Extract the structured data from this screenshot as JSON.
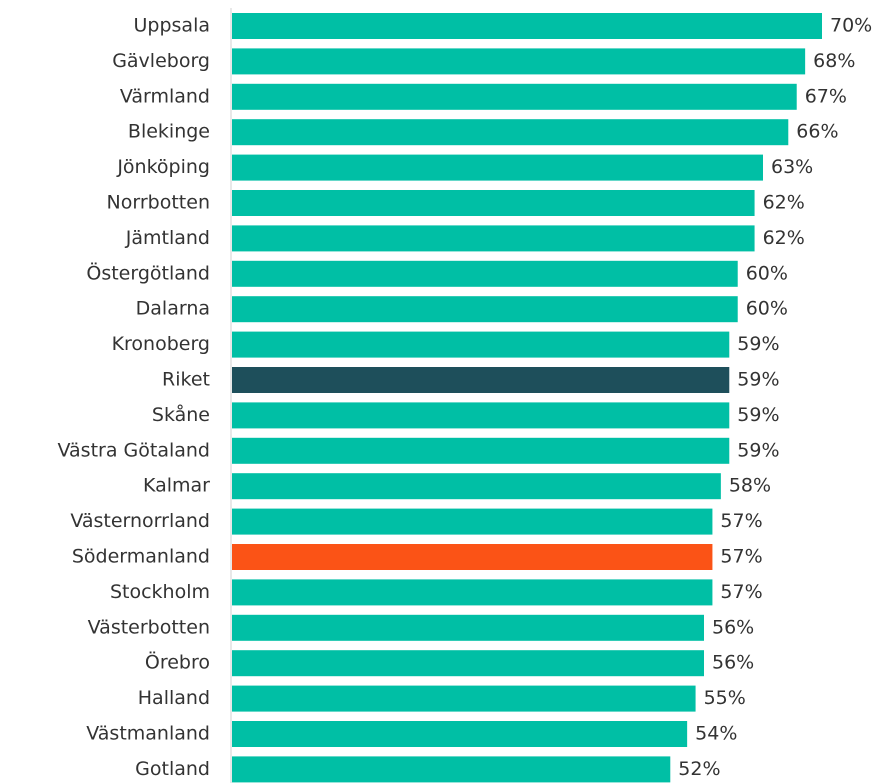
{
  "chart_data": {
    "type": "barh",
    "categories": [
      "Uppsala",
      "Gävleborg",
      "Värmland",
      "Blekinge",
      "Jönköping",
      "Norrbotten",
      "Jämtland",
      "Östergötland",
      "Dalarna",
      "Kronoberg",
      "Riket",
      "Skåne",
      "Västra Götaland",
      "Kalmar",
      "Västernorrland",
      "Södermanland",
      "Stockholm",
      "Västerbotten",
      "Örebro",
      "Halland",
      "Västmanland",
      "Gotland"
    ],
    "values": [
      70,
      68,
      67,
      66,
      63,
      62,
      62,
      60,
      60,
      59,
      59,
      59,
      59,
      58,
      57,
      57,
      57,
      56,
      56,
      55,
      54,
      52
    ],
    "value_labels": [
      "70%",
      "68%",
      "67%",
      "66%",
      "63%",
      "62%",
      "62%",
      "60%",
      "60%",
      "59%",
      "59%",
      "59%",
      "59%",
      "58%",
      "57%",
      "57%",
      "57%",
      "56%",
      "56%",
      "55%",
      "54%",
      "52%"
    ],
    "colors": [
      "#00bfa5",
      "#00bfa5",
      "#00bfa5",
      "#00bfa5",
      "#00bfa5",
      "#00bfa5",
      "#00bfa5",
      "#00bfa5",
      "#00bfa5",
      "#00bfa5",
      "#1e4f5b",
      "#00bfa5",
      "#00bfa5",
      "#00bfa5",
      "#00bfa5",
      "#fb5316",
      "#00bfa5",
      "#00bfa5",
      "#00bfa5",
      "#00bfa5",
      "#00bfa5",
      "#00bfa5"
    ]
  }
}
